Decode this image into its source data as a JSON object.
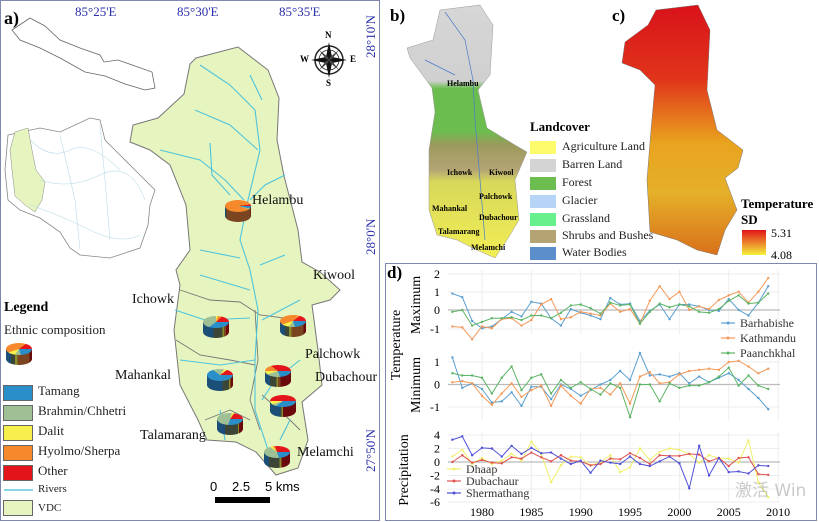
{
  "panel_labels": {
    "a": "a)",
    "b": "b)",
    "c": "c)",
    "d": "d)"
  },
  "map_a": {
    "lon_ticks": [
      "85°25'E",
      "85°30'E",
      "85°35'E"
    ],
    "lat_ticks": [
      "28°10'N",
      "28°0'N",
      "27°50'N"
    ],
    "compass": {
      "n": "N",
      "s": "S",
      "e": "E",
      "w": "W"
    },
    "vdcs": [
      {
        "name": "Helambu",
        "composition": {
          "Tamang": 3,
          "Brahmin/Chhetri": 2,
          "Dalit": 0,
          "Hyolmo/Sherpa": 93,
          "Other": 2
        }
      },
      {
        "name": "Kiwool"
      },
      {
        "name": "Ichowk",
        "composition": {
          "Tamang": 40,
          "Brahmin/Chhetri": 35,
          "Dalit": 5,
          "Hyolmo/Sherpa": 8,
          "Other": 12
        }
      },
      {
        "name": "Palchowk",
        "composition": {
          "Tamang": 20,
          "Brahmin/Chhetri": 15,
          "Dalit": 10,
          "Hyolmo/Sherpa": 45,
          "Other": 10
        }
      },
      {
        "name": "Mahankal",
        "composition": {
          "Tamang": 60,
          "Brahmin/Chhetri": 25,
          "Dalit": 5,
          "Hyolmo/Sherpa": 0,
          "Other": 10
        }
      },
      {
        "name": "Dubachour",
        "composition": {
          "Tamang": 20,
          "Brahmin/Chhetri": 25,
          "Dalit": 5,
          "Hyolmo/Sherpa": 10,
          "Other": 40
        }
      },
      {
        "name": "Talamarang",
        "composition": {
          "Tamang": 30,
          "Brahmin/Chhetri": 50,
          "Dalit": 5,
          "Hyolmo/Sherpa": 0,
          "Other": 15
        }
      },
      {
        "name": "Melamchi",
        "composition": {
          "Tamang": 20,
          "Brahmin/Chhetri": 40,
          "Dalit": 5,
          "Hyolmo/Sherpa": 5,
          "Other": 30
        }
      }
    ],
    "unnamed_pie": {
      "composition": {
        "Tamang": 40,
        "Brahmin/Chhetri": 5,
        "Dalit": 5,
        "Hyolmo/Sherpa": 0,
        "Other": 50
      }
    },
    "legend": {
      "title": "Legend",
      "subtitle": "Ethnic composition",
      "items": [
        {
          "label": "Tamang",
          "color": "#2a8fc9"
        },
        {
          "label": "Brahmin/Chhetri",
          "color": "#9fbf95"
        },
        {
          "label": "Dalit",
          "color": "#f6ef4c"
        },
        {
          "label": "Hyolmo/Sherpa",
          "color": "#f5892b"
        },
        {
          "label": "Other",
          "color": "#e4141b"
        },
        {
          "label": "Rivers",
          "color": "#5bc8e0"
        },
        {
          "label": "VDC",
          "color": "#e6f5bf"
        }
      ]
    },
    "scale_bar": {
      "ticks": [
        "0",
        "2.5",
        "5 kms"
      ]
    }
  },
  "map_b": {
    "labels": [
      "Helambu",
      "Ichowk",
      "Kiwool",
      "Mahankal",
      "Palchowk",
      "Dubachour",
      "Talamarang",
      "Melamchi"
    ],
    "legend_title": "Landcover",
    "classes": [
      {
        "label": "Agriculture Land",
        "color": "#fbfb6b"
      },
      {
        "label": "Barren Land",
        "color": "#d4d4d4"
      },
      {
        "label": "Forest",
        "color": "#6cbd4f"
      },
      {
        "label": "Glacier",
        "color": "#b6d5f6"
      },
      {
        "label": "Grassland",
        "color": "#67f08c"
      },
      {
        "label": "Shrubs and Bushes",
        "color": "#b4a474"
      },
      {
        "label": "Water Bodies",
        "color": "#5b8ecb"
      }
    ]
  },
  "map_c": {
    "legend_title_1": "Temperature",
    "legend_title_2": "SD",
    "max": "5.31",
    "min": "4.08",
    "color_high": "#e0141a",
    "color_low": "#f5f03a"
  },
  "chart_data": {
    "type": "line",
    "x": [
      1977,
      1978,
      1979,
      1980,
      1981,
      1982,
      1983,
      1984,
      1985,
      1986,
      1987,
      1988,
      1989,
      1990,
      1991,
      1992,
      1993,
      1994,
      1995,
      1996,
      1997,
      1998,
      1999,
      2000,
      2001,
      2002,
      2003,
      2004,
      2005,
      2006,
      2007,
      2008,
      2009
    ],
    "x_ticks": [
      "1980",
      "1985",
      "1990",
      "1995",
      "2000",
      "2005",
      "2010"
    ],
    "panels": [
      {
        "ylabel": "Maximum",
        "y_ticks": [
          "2",
          "1",
          "0",
          "-1"
        ],
        "ylim": [
          -1.8,
          2.1
        ],
        "series": [
          {
            "name": "Barhabishe",
            "color": "#5a9fd0",
            "values": [
              0.9,
              0.7,
              -0.6,
              -1.0,
              -0.9,
              -0.5,
              -0.1,
              -0.35,
              0.45,
              0.35,
              -0.45,
              -0.85,
              0.05,
              -0.15,
              -0.3,
              -0.5,
              0.65,
              0.3,
              0.35,
              -0.6,
              -0.05,
              0.3,
              -0.5,
              0.3,
              0.3,
              0.2,
              0.0,
              -0.05,
              0.6,
              0.0,
              -0.3,
              0.4,
              1.3
            ]
          },
          {
            "name": "Kathmandu",
            "color": "#f4995a",
            "values": [
              -0.9,
              -0.95,
              -1.6,
              -0.9,
              -1.0,
              -0.5,
              -0.45,
              -0.85,
              -0.55,
              0.3,
              0.6,
              -0.5,
              -0.4,
              -0.1,
              -0.2,
              -0.3,
              0.35,
              -0.1,
              0.05,
              -0.75,
              0.5,
              1.3,
              0.6,
              1.0,
              0.0,
              0.2,
              0.05,
              0.55,
              0.8,
              1.0,
              0.4,
              1.0,
              1.75
            ]
          },
          {
            "name": "Paanchkhal",
            "color": "#5cb464",
            "values": [
              -0.1,
              0.0,
              -0.85,
              -0.65,
              -0.45,
              -0.45,
              -0.4,
              -0.55,
              -0.3,
              -0.3,
              -0.45,
              -0.15,
              0.25,
              0.3,
              0.1,
              -0.2,
              0.4,
              0.25,
              0.3,
              -0.75,
              -0.1,
              0.35,
              0.15,
              0.3,
              0.2,
              -0.1,
              -0.15,
              0.05,
              0.5,
              0.8,
              0.35,
              0.4,
              0.9
            ]
          }
        ]
      },
      {
        "ylabel": "Minimum",
        "y_ticks": [
          "1",
          "0",
          "-1"
        ],
        "ylim": [
          -1.6,
          1.6
        ],
        "series": [
          {
            "name": "Barhabishe",
            "color": "#5a9fd0",
            "values": [
              1.2,
              -0.15,
              0.05,
              -0.2,
              -0.8,
              -0.75,
              -0.35,
              -0.95,
              -0.1,
              -0.1,
              -0.65,
              0.0,
              -0.2,
              -0.5,
              -0.25,
              0.0,
              0.2,
              0.6,
              0.2,
              1.4,
              0.4,
              0.45,
              0.35,
              0.5,
              0.05,
              0.35,
              0.1,
              0.3,
              0.5,
              0.2,
              -0.2,
              -0.6,
              -1.1
            ]
          },
          {
            "name": "Kathmandu",
            "color": "#f4995a",
            "values": [
              0.1,
              0.15,
              0.05,
              -0.5,
              -0.9,
              -0.4,
              0.05,
              -0.55,
              -0.25,
              -0.05,
              -0.95,
              -0.05,
              -0.5,
              -0.85,
              -0.2,
              -0.15,
              -0.45,
              0.05,
              -0.85,
              0.35,
              0.55,
              0.05,
              0.1,
              0.45,
              0.6,
              0.65,
              0.7,
              0.65,
              1.0,
              1.05,
              0.8,
              0.5,
              0.7
            ]
          },
          {
            "name": "Paanchkhal",
            "color": "#5cb464",
            "values": [
              0.5,
              0.4,
              0.4,
              0.3,
              -0.4,
              0.3,
              0.8,
              -0.25,
              0.3,
              0.45,
              -0.4,
              0.2,
              -0.15,
              0.1,
              -0.2,
              -0.45,
              0.05,
              -0.15,
              -1.45,
              0.0,
              0.0,
              -0.75,
              0.05,
              -0.15,
              -0.05,
              -0.05,
              0.1,
              0.35,
              0.75,
              -0.05,
              0.4,
              -0.05,
              -0.2
            ]
          }
        ]
      },
      {
        "ylabel": "Precipitation",
        "y_ticks": [
          "4",
          "2",
          "0",
          "-2",
          "-4",
          "-6"
        ],
        "ylim": [
          -6,
          4.5
        ],
        "series": [
          {
            "name": "Dhaap",
            "color": "#f0ef6a",
            "values": [
              0.8,
              1.8,
              -0.3,
              0.6,
              -0.3,
              0.2,
              1.2,
              0.2,
              3.0,
              1.2,
              -3.0,
              -0.5,
              0.8,
              0.7,
              -0.5,
              0.0,
              1.0,
              -1.5,
              -0.8,
              2.0,
              0.3,
              1.5,
              2.0,
              1.8,
              1.2,
              -0.1,
              1.0,
              0.6,
              0.5,
              -0.1,
              3.2,
              -3.0,
              -5.2
            ]
          },
          {
            "name": "Dubachaur",
            "color": "#e0514f",
            "values": [
              0.0,
              1.0,
              -0.1,
              0.3,
              -0.1,
              -0.2,
              0.7,
              0.5,
              1.4,
              0.7,
              0.1,
              1.0,
              0.2,
              0.1,
              -0.5,
              -0.3,
              0.5,
              0.4,
              1.3,
              0.6,
              -0.3,
              1.0,
              0.9,
              0.9,
              1.2,
              1.1,
              0.1,
              0.6,
              -0.6,
              0.6,
              0.7,
              -1.8,
              -1.9
            ]
          },
          {
            "name": "Shermathang",
            "color": "#5050d8",
            "values": [
              3.3,
              3.8,
              1.0,
              2.1,
              2.0,
              0.8,
              2.4,
              1.2,
              2.1,
              1.3,
              1.4,
              0.5,
              -0.3,
              0.2,
              -1.6,
              0.2,
              -0.1,
              -0.3,
              0.8,
              -0.3,
              -0.6,
              0.1,
              0.8,
              -0.2,
              -3.9,
              2.4,
              -2.0,
              0.6,
              -1.5,
              -1.4,
              -1.7,
              -0.5,
              -0.6
            ]
          }
        ]
      }
    ],
    "shared_ylabel": "Temperature",
    "grid": true
  },
  "watermark": "激活 Win"
}
